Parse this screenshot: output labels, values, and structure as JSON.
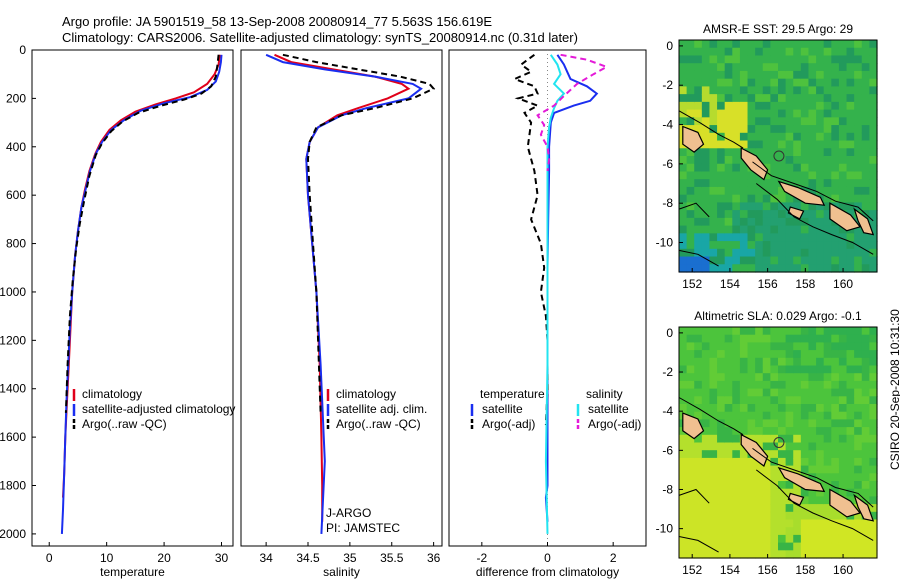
{
  "header": {
    "title_line1": "Argo profile: JA 5901519_58 13-Sep-2008 20080914_77 5.563S 156.619E",
    "title_line2": "Climatology: CARS2006. Satellite-adjusted climatology: synTS_20080914.nc (0.31d later)"
  },
  "footer": {
    "stamp": "CSIRO 20-Sep-2008 10:31:30"
  },
  "colors": {
    "climatology": "#e0001a",
    "satellite": "#1a2ef0",
    "argo": "#000000",
    "sal_satellite": "#22e4f0",
    "sal_argo": "#e41ad8"
  },
  "chart_data": [
    {
      "type": "line",
      "xlabel": "temperature",
      "ylabel": "",
      "xlim": [
        -3,
        32
      ],
      "ylim": [
        2050,
        0
      ],
      "xticks": [
        0,
        10,
        20,
        30
      ],
      "yticks": [
        0,
        200,
        400,
        600,
        800,
        1000,
        1200,
        1400,
        1600,
        1800,
        2000
      ],
      "legend": [
        "climatology",
        "satellite-adjusted climatology",
        "Argo(..raw -QC)"
      ],
      "series": [
        {
          "name": "climatology",
          "color": "#e0001a",
          "dash": "",
          "x": [
            29.7,
            29.5,
            28.8,
            27.5,
            25.2,
            22.0,
            18.5,
            15.0,
            12.5,
            10.5,
            9.0,
            8.0,
            7.0,
            6.2,
            5.6,
            5.0,
            4.5,
            4.0,
            3.7,
            3.4,
            3.1,
            2.8,
            2.6,
            2.4
          ],
          "y": [
            20,
            60,
            100,
            140,
            175,
            200,
            225,
            255,
            290,
            330,
            380,
            430,
            500,
            580,
            650,
            750,
            850,
            1000,
            1150,
            1300,
            1450,
            1600,
            1750,
            1850
          ]
        },
        {
          "name": "satellite-adjusted climatology",
          "color": "#1a2ef0",
          "dash": "",
          "x": [
            30.0,
            29.9,
            29.6,
            29.0,
            27.5,
            24.5,
            20.0,
            16.0,
            13.0,
            10.8,
            9.2,
            8.1,
            7.1,
            6.3,
            5.6,
            5.0,
            4.5,
            4.0,
            3.6,
            3.3,
            3.0,
            2.8,
            2.6,
            2.4,
            2.2
          ],
          "y": [
            20,
            50,
            90,
            130,
            165,
            195,
            220,
            250,
            290,
            330,
            380,
            430,
            500,
            580,
            650,
            750,
            850,
            1000,
            1150,
            1300,
            1450,
            1600,
            1750,
            1900,
            2000
          ]
        },
        {
          "name": "Argo(..raw -QC)",
          "color": "#000000",
          "dash": "6,4",
          "x": [
            29.5,
            29.3,
            29.0,
            28.2,
            26.5,
            23.5,
            19.5,
            15.5,
            12.8,
            10.8,
            9.2,
            8.1,
            7.0,
            6.1,
            5.3,
            4.7,
            4.1,
            3.6,
            3.2,
            2.9
          ],
          "y": [
            20,
            60,
            110,
            150,
            180,
            205,
            230,
            260,
            295,
            335,
            385,
            435,
            520,
            620,
            720,
            820,
            950,
            1100,
            1300,
            1500
          ]
        }
      ]
    },
    {
      "type": "line",
      "xlabel": "salinity",
      "ylabel": "",
      "xlim": [
        33.7,
        36.1
      ],
      "ylim": [
        2050,
        0
      ],
      "xticks": [
        34,
        34.5,
        35,
        35.5,
        36
      ],
      "yticks": [],
      "legend": [
        "climatology",
        "satellite adj. clim.",
        "Argo(..raw -QC)"
      ],
      "annotations": [
        "J-ARGO",
        "PI: JAMSTEC"
      ],
      "series": [
        {
          "name": "climatology",
          "color": "#e0001a",
          "dash": "",
          "x": [
            34.1,
            34.3,
            34.8,
            35.3,
            35.62,
            35.7,
            35.45,
            35.1,
            34.85,
            34.62,
            34.52,
            34.48,
            34.5,
            34.55,
            34.6,
            34.64,
            34.66,
            34.67,
            34.67
          ],
          "y": [
            20,
            50,
            80,
            110,
            140,
            160,
            200,
            240,
            270,
            320,
            380,
            450,
            600,
            800,
            1000,
            1300,
            1600,
            1800,
            1950
          ]
        },
        {
          "name": "satellite adj. clim.",
          "color": "#1a2ef0",
          "dash": "",
          "x": [
            34.0,
            34.2,
            34.7,
            35.3,
            35.75,
            35.85,
            35.7,
            35.2,
            34.9,
            34.62,
            34.52,
            34.48,
            34.5,
            34.55,
            34.6,
            34.65,
            34.7,
            34.68,
            34.66
          ],
          "y": [
            20,
            50,
            80,
            110,
            140,
            160,
            200,
            240,
            270,
            320,
            380,
            450,
            600,
            800,
            1000,
            1300,
            1700,
            1850,
            2000
          ]
        },
        {
          "name": "Argo(..raw -QC)",
          "color": "#000000",
          "dash": "6,4",
          "x": [
            34.2,
            34.6,
            35.1,
            35.6,
            35.95,
            36.0,
            35.75,
            35.3,
            34.9,
            34.6,
            34.52,
            34.5,
            34.52,
            34.56,
            34.6,
            34.63,
            34.65
          ],
          "y": [
            20,
            50,
            80,
            110,
            140,
            160,
            200,
            240,
            270,
            320,
            380,
            450,
            600,
            800,
            1000,
            1300,
            1500
          ]
        }
      ]
    },
    {
      "type": "line",
      "xlabel": "difference from climatology",
      "ylabel": "",
      "xlim": [
        -3,
        3
      ],
      "ylim": [
        2050,
        0
      ],
      "xticks": [
        -2,
        0,
        2
      ],
      "yticks": [],
      "legend": [
        "temperature",
        "satellite",
        "Argo(-adj)",
        "salinity",
        "satellite",
        "Argo(-adj)"
      ],
      "series": [
        {
          "name": "temperature satellite",
          "color": "#1a2ef0",
          "dash": "",
          "x": [
            0.3,
            0.5,
            0.6,
            0.7,
            1.2,
            1.5,
            1.3,
            0.8,
            0.2,
            0.1,
            0.05,
            0.05,
            0.02,
            0.0,
            0.0,
            0.0,
            0.0,
            -0.05,
            0.0
          ],
          "y": [
            20,
            60,
            90,
            120,
            150,
            180,
            210,
            230,
            260,
            300,
            400,
            500,
            700,
            900,
            1200,
            1500,
            1800,
            1850,
            1950
          ]
        },
        {
          "name": "temperature Argo(-adj)",
          "color": "#000000",
          "dash": "6,4",
          "x": [
            -0.4,
            -0.8,
            -0.5,
            -1.0,
            -0.4,
            -0.3,
            -0.9,
            -0.3,
            -0.7,
            -0.5,
            -0.6,
            -0.4,
            -0.3,
            -0.5,
            -0.2,
            -0.1,
            -0.2,
            -0.05,
            0.0,
            0.0,
            -0.05
          ],
          "y": [
            20,
            60,
            90,
            120,
            150,
            180,
            200,
            230,
            260,
            300,
            400,
            500,
            600,
            700,
            800,
            900,
            1000,
            1100,
            1200,
            1400,
            1550
          ]
        },
        {
          "name": "salinity satellite",
          "color": "#22e4f0",
          "dash": "",
          "x": [
            0.1,
            0.3,
            0.4,
            0.2,
            0.5,
            0.3,
            0.2,
            0.1,
            0.05,
            0.0,
            0.0,
            0.0,
            0.0,
            -0.05,
            0.0
          ],
          "y": [
            20,
            60,
            100,
            140,
            180,
            210,
            240,
            280,
            320,
            400,
            600,
            900,
            1300,
            1700,
            2000
          ]
        },
        {
          "name": "salinity Argo(-adj)",
          "color": "#e41ad8",
          "dash": "6,4",
          "x": [
            0.4,
            1.2,
            1.8,
            1.4,
            0.9,
            0.5,
            0.2,
            -0.3,
            -0.1,
            -0.2,
            0.0,
            0.05,
            0.0
          ],
          "y": [
            20,
            40,
            70,
            100,
            140,
            190,
            230,
            270,
            310,
            350,
            400,
            450,
            500
          ]
        }
      ]
    },
    {
      "type": "heatmap",
      "title": "AMSR-E SST: 29.5 Argo: 29",
      "xlim": [
        151.3,
        161.8
      ],
      "ylim": [
        -11.5,
        0.3
      ],
      "xticks": [
        152,
        154,
        156,
        158,
        160
      ],
      "yticks": [
        0,
        -2,
        -4,
        -6,
        -8,
        -10
      ],
      "marker": {
        "lon": 156.6,
        "lat": -5.6
      }
    },
    {
      "type": "heatmap",
      "title": "Altimetric SLA: 0.029 Argo: -0.1",
      "xlim": [
        151.3,
        161.8
      ],
      "ylim": [
        -11.5,
        0.3
      ],
      "xticks": [
        152,
        154,
        156,
        158,
        160
      ],
      "yticks": [
        0,
        -2,
        -4,
        -6,
        -8,
        -10
      ],
      "marker": {
        "lon": 156.6,
        "lat": -5.6
      }
    }
  ]
}
